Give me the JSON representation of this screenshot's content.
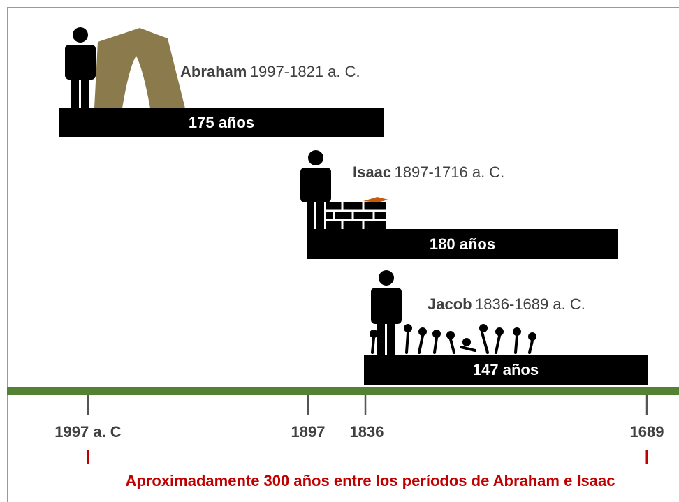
{
  "people": [
    {
      "name": "Abraham",
      "dates": "1997-1821 a. C.",
      "bar_label": "175 años"
    },
    {
      "name": "Isaac",
      "dates": "1897-1716 a. C.",
      "bar_label": "180 años"
    },
    {
      "name": "Jacob",
      "dates": "1836-1689 a. C.",
      "bar_label": "147 años"
    }
  ],
  "axis": {
    "ticks": [
      "1997 a. C",
      "1897",
      "1836",
      "1689"
    ]
  },
  "note": "Aproximadamente 300 años entre los períodos de Abraham e Isaac"
}
